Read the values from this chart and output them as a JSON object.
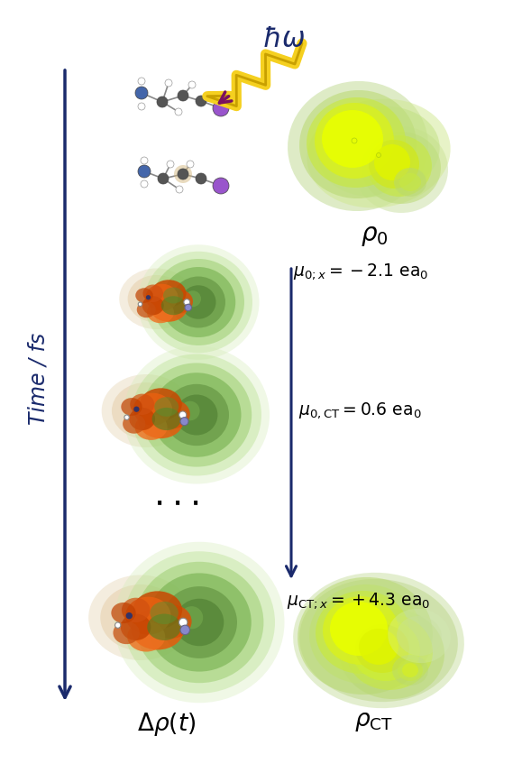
{
  "bg_color": "#ffffff",
  "arrow_color": "#1a2a6c",
  "photon_arrow_color": "#7a1060",
  "photon_fill_color": "#f5d020",
  "hbar_omega_color": "#1a2a6c",
  "mu0x_label": "$\\mu_{0;x} = -2.1\\ \\mathrm{ea_0}$",
  "mu0CT_label": "$\\mu_{0,\\mathrm{CT}} = 0.6\\ \\mathrm{ea_0}$",
  "muCTx_label": "$\\mu_{\\mathrm{CT};x} = +4.3\\ \\mathrm{ea_0}$",
  "time_label": "Time / fs",
  "delta_rho_label": "$\\Delta\\rho(t)$",
  "rho0_label": "$\\rho_0$",
  "rhoCT_label": "$\\rho_{\\mathrm{CT}}$"
}
